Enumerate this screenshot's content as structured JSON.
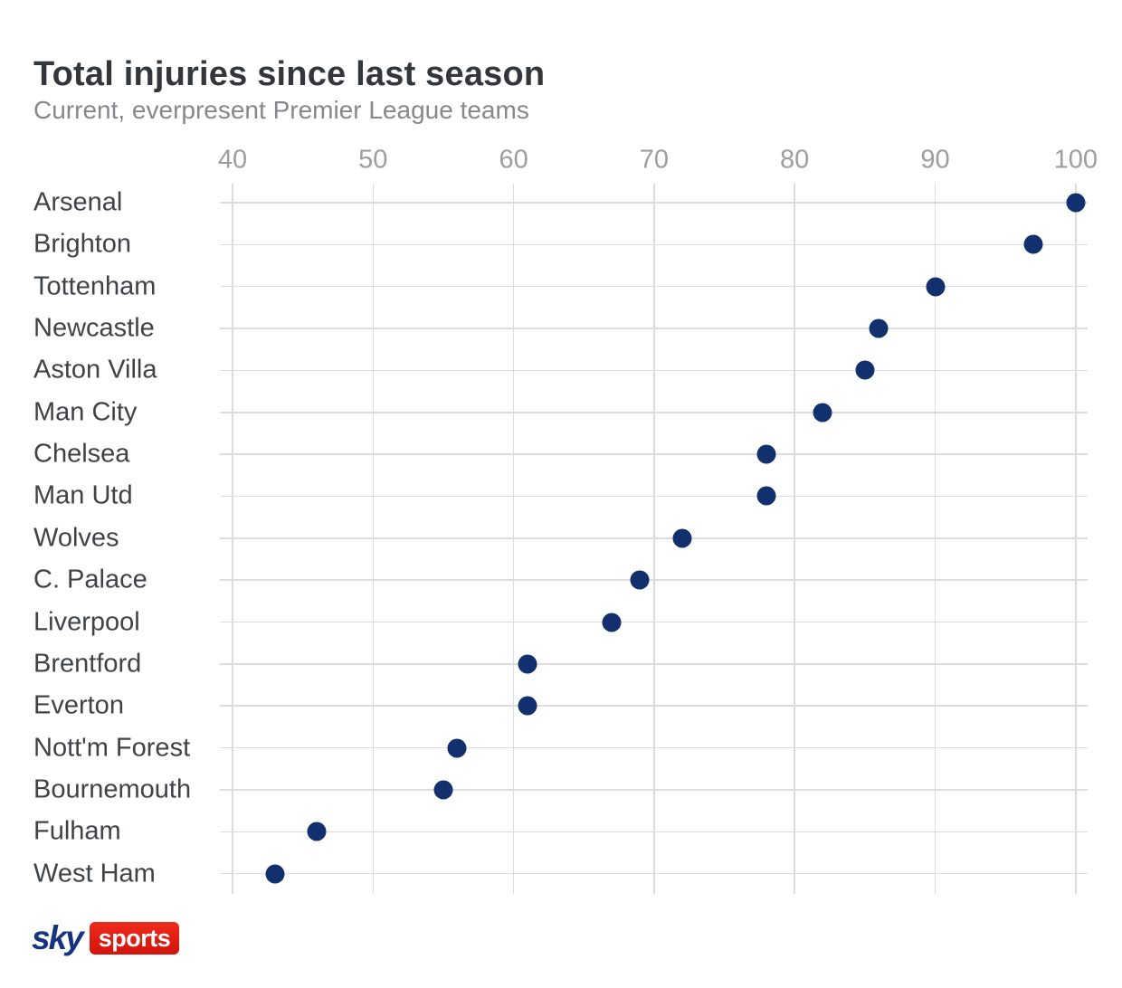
{
  "page": {
    "title": "Total injuries since last season",
    "subtitle": "Current, everpresent Premier League teams"
  },
  "chart_data": {
    "type": "scatter",
    "variant": "horizontal-dot-plot",
    "title": "Total injuries since last season",
    "subtitle": "Current, everpresent Premier League teams",
    "xlabel": "",
    "ylabel": "",
    "x_ticks": [
      40,
      50,
      60,
      70,
      80,
      90,
      100
    ],
    "xlim": [
      39,
      101
    ],
    "grid": true,
    "legend": false,
    "categories": [
      "Arsenal",
      "Brighton",
      "Tottenham",
      "Newcastle",
      "Aston Villa",
      "Man City",
      "Chelsea",
      "Man Utd",
      "Wolves",
      "C. Palace",
      "Liverpool",
      "Brentford",
      "Everton",
      "Nott'm Forest",
      "Bournemouth",
      "Fulham",
      "West Ham"
    ],
    "values": [
      100,
      97,
      90,
      86,
      85,
      82,
      78,
      78,
      72,
      69,
      67,
      61,
      61,
      56,
      55,
      46,
      43
    ]
  },
  "branding": {
    "sky": "sky",
    "sports": "sports"
  },
  "colors": {
    "dot": "#12306e",
    "gridline": "#dcdcdc",
    "title": "#33373c",
    "subtitle": "#85888c",
    "tick": "#9b9ea1",
    "label": "#3f4347",
    "sky_navy": "#17337f",
    "sky_red": "#e11b10",
    "background": "#ffffff"
  }
}
